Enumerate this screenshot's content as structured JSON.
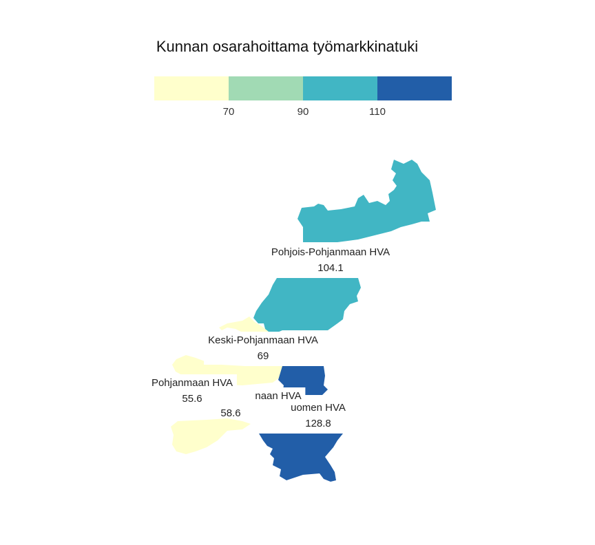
{
  "title": "Kunnan osarahoittama työmarkkinatuki",
  "legend": {
    "breaks": [
      "70",
      "90",
      "110"
    ],
    "colors": [
      "#ffffcc",
      "#a1dab4",
      "#41b6c4",
      "#225ea8"
    ]
  },
  "regions": [
    {
      "name": "Pohjois-Pohjanmaan HVA",
      "value": "104.1",
      "color": "#41b6c4"
    },
    {
      "name": "Keski-Pohjanmaan HVA",
      "value": "69",
      "color": "#ffffcc"
    },
    {
      "name": "Pohjanmaan HVA",
      "value": "55.6",
      "color": "#ffffcc"
    },
    {
      "name": "naan HVA",
      "value": "58.6",
      "color": "#ffffcc"
    },
    {
      "name": "uomen HVA",
      "value": "128.8",
      "color": "#225ea8"
    }
  ]
}
